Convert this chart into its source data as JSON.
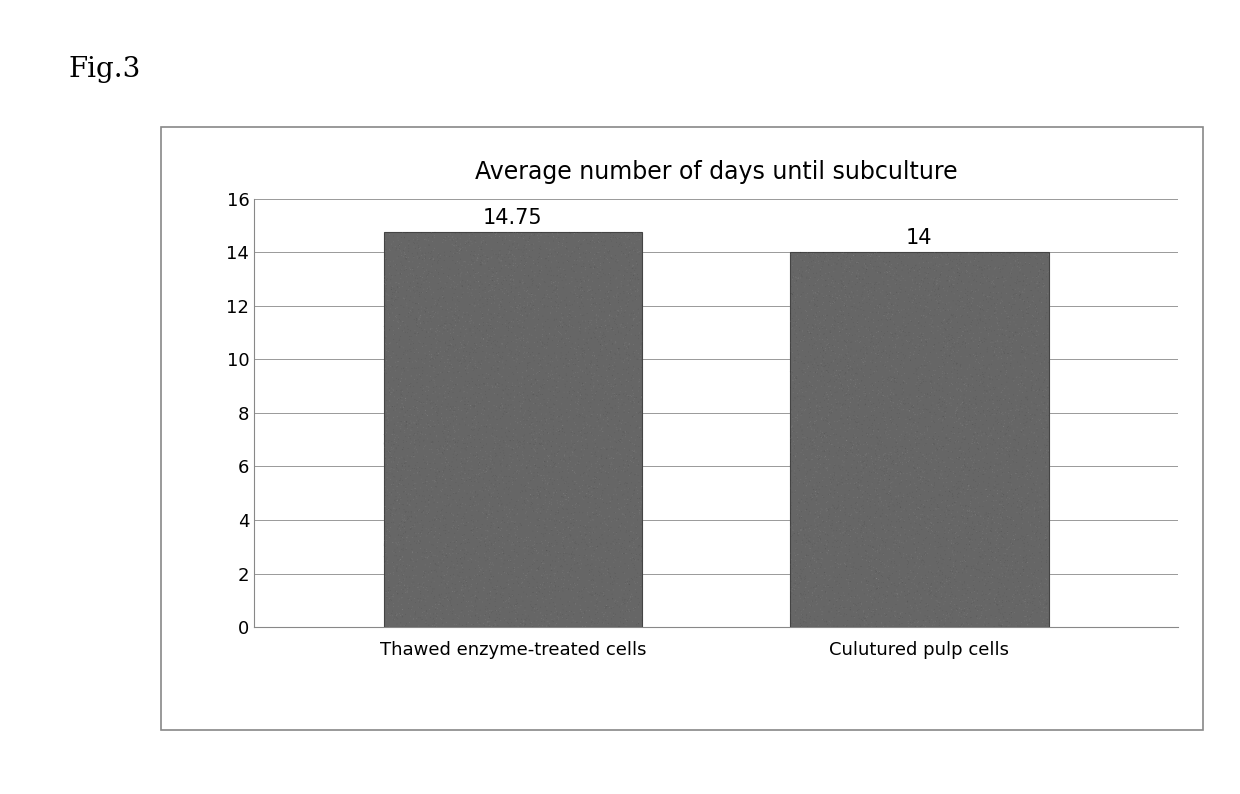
{
  "title": "Average number of days until subculture",
  "fig_label": "Fig.3",
  "categories": [
    "Thawed enzyme-treated cells",
    "Culutured pulp cells"
  ],
  "values": [
    14.75,
    14
  ],
  "bar_labels": [
    "14.75",
    "14"
  ],
  "bar_color": "#666666",
  "ylim": [
    0,
    16
  ],
  "yticks": [
    0,
    2,
    4,
    6,
    8,
    10,
    12,
    14,
    16
  ],
  "title_fontsize": 17,
  "tick_fontsize": 13,
  "bar_label_fontsize": 15,
  "fig_label_fontsize": 20,
  "background_color": "#ffffff",
  "grid_color": "#999999",
  "bar_width": 0.28,
  "x_positions": [
    0.28,
    0.72
  ],
  "xlim": [
    0.0,
    1.0
  ]
}
